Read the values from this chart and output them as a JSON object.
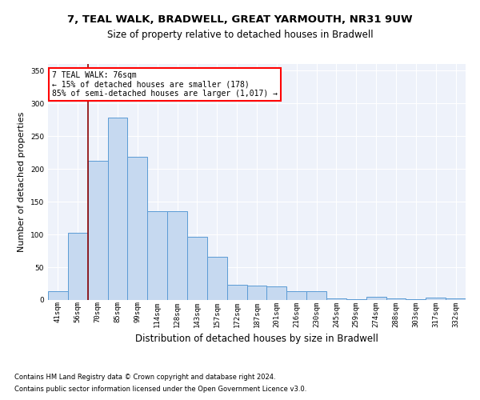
{
  "title": "7, TEAL WALK, BRADWELL, GREAT YARMOUTH, NR31 9UW",
  "subtitle": "Size of property relative to detached houses in Bradwell",
  "xlabel": "Distribution of detached houses by size in Bradwell",
  "ylabel": "Number of detached properties",
  "categories": [
    "41sqm",
    "56sqm",
    "70sqm",
    "85sqm",
    "99sqm",
    "114sqm",
    "128sqm",
    "143sqm",
    "157sqm",
    "172sqm",
    "187sqm",
    "201sqm",
    "216sqm",
    "230sqm",
    "245sqm",
    "259sqm",
    "274sqm",
    "288sqm",
    "303sqm",
    "317sqm",
    "332sqm"
  ],
  "values": [
    14,
    103,
    212,
    278,
    218,
    135,
    135,
    97,
    66,
    23,
    22,
    21,
    13,
    14,
    3,
    1,
    5,
    3,
    1,
    4,
    3
  ],
  "bar_color": "#c6d9f0",
  "bar_edge_color": "#5b9bd5",
  "bar_width": 1.0,
  "ylim": [
    0,
    360
  ],
  "yticks": [
    0,
    50,
    100,
    150,
    200,
    250,
    300,
    350
  ],
  "property_line_color": "#8b0000",
  "annotation_text": "7 TEAL WALK: 76sqm\n← 15% of detached houses are smaller (178)\n85% of semi-detached houses are larger (1,017) →",
  "annotation_box_color": "white",
  "annotation_border_color": "red",
  "bg_color": "#eef2fa",
  "grid_color": "white",
  "footnote1": "Contains HM Land Registry data © Crown copyright and database right 2024.",
  "footnote2": "Contains public sector information licensed under the Open Government Licence v3.0.",
  "title_fontsize": 9.5,
  "subtitle_fontsize": 8.5,
  "ylabel_fontsize": 8,
  "xlabel_fontsize": 8.5,
  "tick_fontsize": 6.5,
  "annotation_fontsize": 7,
  "footnote_fontsize": 6
}
